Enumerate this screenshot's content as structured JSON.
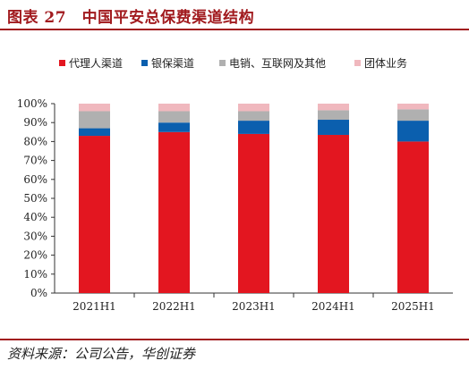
{
  "figure_title": "图表 27　中国平安总保费渠道结构",
  "source_note": "资料来源：公司公告，华创证券",
  "chart_data": {
    "type": "bar",
    "stacked": true,
    "categories": [
      "2021H1",
      "2022H1",
      "2023H1",
      "2024H1",
      "2025H1"
    ],
    "y_ticks": [
      "0%",
      "10%",
      "20%",
      "30%",
      "40%",
      "50%",
      "60%",
      "70%",
      "80%",
      "90%",
      "100%"
    ],
    "ylim": [
      0,
      100
    ],
    "grid": false,
    "legend_position": "top",
    "series": [
      {
        "name": "代理人渠道",
        "color": "#e31620",
        "values": [
          83,
          85,
          84,
          83.5,
          80
        ]
      },
      {
        "name": "银保渠道",
        "color": "#0b5fae",
        "values": [
          4,
          5,
          7,
          8,
          11
        ]
      },
      {
        "name": "电销、互联网及其他",
        "color": "#b0b0b0",
        "values": [
          9,
          6,
          5,
          5,
          6
        ]
      },
      {
        "name": "团体业务",
        "color": "#f0b8be",
        "values": [
          4,
          4,
          4,
          3.5,
          3
        ]
      }
    ]
  }
}
